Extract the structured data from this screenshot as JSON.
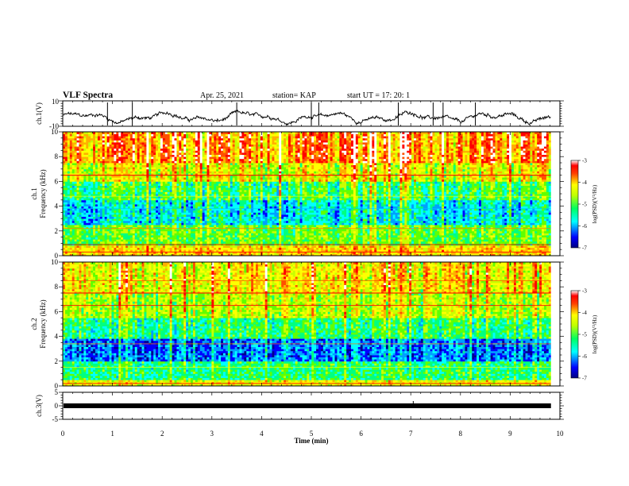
{
  "header": {
    "title": "VLF Spectra",
    "date": "Apr. 25, 2021",
    "station": "station= KAP",
    "start_ut": "start  UT  =   17: 20: 1"
  },
  "chart_data": [
    {
      "type": "line",
      "panel": "ch1-waveform",
      "ylabel": "ch.1(V)",
      "ylim": [
        -10,
        10
      ],
      "ytick_labels": [
        "10",
        "-10"
      ],
      "xlim": [
        0,
        10
      ]
    },
    {
      "type": "heatmap",
      "panel": "ch1-spectrogram",
      "ylabel_lines": [
        "ch.1",
        "Frequency  (kHz)"
      ],
      "ylim": [
        0,
        10
      ],
      "ytick_labels": [
        "0",
        "2",
        "4",
        "6",
        "8",
        "10"
      ],
      "xlim": [
        0,
        10
      ],
      "colorbar": {
        "label": "log(PSD)(V²/Hz)",
        "range": [
          -7,
          -3
        ],
        "tick_labels": [
          "-3",
          "-4",
          "-5",
          "-6",
          "-7"
        ]
      }
    },
    {
      "type": "heatmap",
      "panel": "ch2-spectrogram",
      "ylabel_lines": [
        "ch.2",
        "Frequency  (kHz)"
      ],
      "ylim": [
        0,
        10
      ],
      "ytick_labels": [
        "0",
        "2",
        "4",
        "6",
        "8",
        "10"
      ],
      "xlim": [
        0,
        10
      ],
      "colorbar": {
        "label": "log(PSD)(V²/Hz)",
        "range": [
          -7,
          -3
        ],
        "tick_labels": [
          "-3",
          "-4",
          "-5",
          "-6",
          "-7"
        ]
      }
    },
    {
      "type": "line",
      "panel": "ch3-waveform",
      "ylabel": "ch.3(V)",
      "ylim": [
        -5,
        5
      ],
      "ytick_labels": [
        "5",
        "0",
        "-5"
      ],
      "xlim": [
        0,
        10
      ],
      "xlabel": "Time  (min)",
      "xtick_labels": [
        "0",
        "1",
        "2",
        "3",
        "4",
        "5",
        "6",
        "7",
        "8",
        "9",
        "10"
      ]
    }
  ],
  "colors": {
    "colormap": [
      "#00008f",
      "#0000ff",
      "#00a0ff",
      "#00ffff",
      "#00ff80",
      "#60ff00",
      "#c8ff00",
      "#ffff00",
      "#ffb000",
      "#ff5000",
      "#ff0000",
      "#ffffff"
    ]
  }
}
